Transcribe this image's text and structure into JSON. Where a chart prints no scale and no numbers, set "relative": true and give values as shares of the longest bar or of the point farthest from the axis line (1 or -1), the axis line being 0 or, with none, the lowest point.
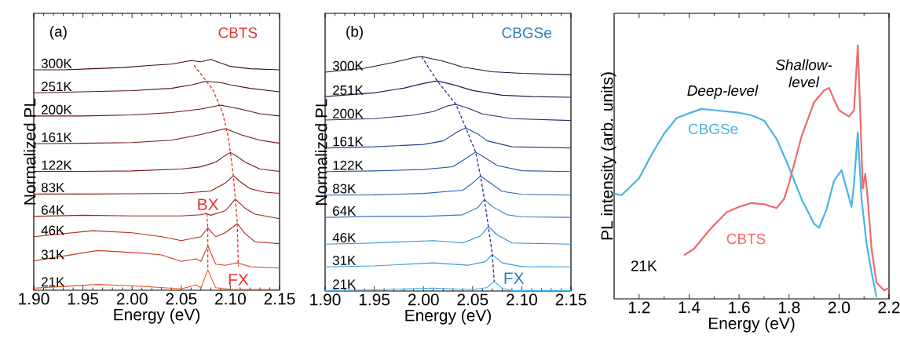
{
  "chart_data": [
    {
      "type": "line",
      "relative": true,
      "xlabel": "Energy (eV)",
      "ylabel": "Normalized PL",
      "line_style": "solid",
      "xlim": [
        1.9,
        2.15
      ],
      "xticks": [
        {
          "value": 1.9,
          "label": "1.90"
        },
        {
          "value": 1.95,
          "label": "1.95"
        },
        {
          "value": 2.0,
          "label": "2.00"
        },
        {
          "value": 2.05,
          "label": "2.05"
        },
        {
          "value": 2.1,
          "label": "2.10"
        },
        {
          "value": 2.15,
          "label": "2.15"
        }
      ],
      "annotations": [
        "(a)",
        "CBTS",
        {
          "text": "BX",
          "x": 2.077,
          "y": 0.332
        },
        {
          "text": "FX",
          "x": 2.108,
          "y": 0.103
        }
      ],
      "series": [
        {
          "name": "300K",
          "color": "#4a0c0c",
          "x": [
            1.9,
            1.93,
            1.96,
            1.99,
            2.02,
            2.04,
            2.06,
            2.07,
            2.08,
            2.09,
            2.1,
            2.12,
            2.15
          ],
          "values": [
            0.955,
            0.955,
            0.96,
            0.965,
            0.975,
            0.98,
            0.995,
            0.99,
            1.0,
            0.985,
            0.97,
            0.96,
            0.955
          ]
        },
        {
          "name": "251K",
          "color": "#5a0f0f",
          "x": [
            1.9,
            1.95,
            2.0,
            2.04,
            2.06,
            2.075,
            2.09,
            2.1,
            2.12,
            2.15
          ],
          "values": [
            0.855,
            0.86,
            0.865,
            0.875,
            0.89,
            0.905,
            0.9,
            0.89,
            0.875,
            0.86
          ]
        },
        {
          "name": "200K",
          "color": "#641212",
          "x": [
            1.9,
            1.95,
            2.0,
            2.04,
            2.07,
            2.09,
            2.11,
            2.13,
            2.15
          ],
          "values": [
            0.755,
            0.755,
            0.76,
            0.77,
            0.785,
            0.802,
            0.785,
            0.765,
            0.755
          ]
        },
        {
          "name": "161K",
          "color": "#6e1414",
          "x": [
            1.9,
            1.95,
            2.0,
            2.04,
            2.07,
            2.085,
            2.095,
            2.11,
            2.13,
            2.15
          ],
          "values": [
            0.635,
            0.637,
            0.64,
            0.65,
            0.675,
            0.69,
            0.7,
            0.675,
            0.65,
            0.637
          ]
        },
        {
          "name": "122K",
          "color": "#7a1616",
          "x": [
            1.9,
            1.95,
            2.0,
            2.05,
            2.07,
            2.085,
            2.095,
            2.1,
            2.105,
            2.115,
            2.13,
            2.15
          ],
          "values": [
            0.515,
            0.515,
            0.517,
            0.525,
            0.535,
            0.555,
            0.585,
            0.597,
            0.585,
            0.555,
            0.525,
            0.515
          ]
        },
        {
          "name": "83K",
          "color": "#8a1a16",
          "x": [
            1.9,
            1.95,
            2.0,
            2.05,
            2.08,
            2.095,
            2.103,
            2.11,
            2.12,
            2.135,
            2.15
          ],
          "values": [
            0.417,
            0.417,
            0.418,
            0.42,
            0.43,
            0.465,
            0.497,
            0.47,
            0.44,
            0.425,
            0.42
          ]
        },
        {
          "name": "64K",
          "color": "#9c2218",
          "x": [
            1.9,
            1.95,
            2.0,
            2.05,
            2.07,
            2.075,
            2.08,
            2.095,
            2.105,
            2.115,
            2.125,
            2.15
          ],
          "values": [
            0.32,
            0.325,
            0.322,
            0.322,
            0.327,
            0.332,
            0.325,
            0.345,
            0.395,
            0.355,
            0.33,
            0.31
          ]
        },
        {
          "name": "46K",
          "color": "#b42c1e",
          "x": [
            1.9,
            1.96,
            2.0,
            2.03,
            2.05,
            2.07,
            2.077,
            2.085,
            2.095,
            2.107,
            2.115,
            2.125,
            2.15
          ],
          "values": [
            0.232,
            0.258,
            0.249,
            0.232,
            0.215,
            0.232,
            0.27,
            0.232,
            0.25,
            0.289,
            0.245,
            0.21,
            0.202
          ]
        },
        {
          "name": "31K",
          "color": "#d03c22",
          "x": [
            1.9,
            1.965,
            2.01,
            2.03,
            2.05,
            2.065,
            2.07,
            2.077,
            2.085,
            2.095,
            2.107,
            2.12,
            2.15
          ],
          "values": [
            0.127,
            0.172,
            0.161,
            0.153,
            0.125,
            0.136,
            0.125,
            0.193,
            0.113,
            0.108,
            0.119,
            0.102,
            0.096
          ]
        },
        {
          "name": "21K",
          "color": "#ea5526",
          "x": [
            1.9,
            1.965,
            2.01,
            2.05,
            2.065,
            2.07,
            2.077,
            2.085,
            2.1,
            2.15
          ],
          "values": [
            0.009,
            0.025,
            0.017,
            0.006,
            0.023,
            0.011,
            0.088,
            0.011,
            0.003,
            0.003
          ]
        },
        {
          "type": "line",
          "color": "#e8322c",
          "line_style": "dashed",
          "x": [
            2.063,
            2.082,
            2.092,
            2.098,
            2.1,
            2.103,
            2.105,
            2.107,
            2.108
          ],
          "values": [
            0.975,
            0.87,
            0.77,
            0.66,
            0.597,
            0.497,
            0.395,
            0.289,
            0.103
          ]
        },
        {
          "type": "line",
          "color": "#e8322c",
          "line_style": "dashed",
          "x": [
            2.076,
            2.077,
            2.077,
            2.077
          ],
          "values": [
            0.332,
            0.27,
            0.193,
            0.088
          ]
        }
      ]
    },
    {
      "type": "line",
      "relative": true,
      "xlabel": "Energy (eV)",
      "ylabel": "Normalized PL",
      "line_style": "solid",
      "xlim": [
        1.9,
        2.15
      ],
      "xticks": [
        {
          "value": 1.9,
          "label": "1.90"
        },
        {
          "value": 1.95,
          "label": "1.95"
        },
        {
          "value": 2.0,
          "label": "2.00"
        },
        {
          "value": 2.05,
          "label": "2.05"
        },
        {
          "value": 2.1,
          "label": "2.10"
        },
        {
          "value": 2.15,
          "label": "2.15"
        }
      ],
      "annotations": [
        "(b)",
        "CBGSe",
        {
          "text": "FX",
          "x": 2.072,
          "y": 0.041
        }
      ],
      "series": [
        {
          "name": "300K",
          "color": "#15153a",
          "x": [
            1.9,
            1.94,
            1.97,
            1.99,
            1.998,
            2.02,
            2.04,
            2.07,
            2.1,
            2.15
          ],
          "values": [
            0.933,
            0.95,
            0.975,
            0.995,
            1.0,
            0.98,
            0.955,
            0.935,
            0.928,
            0.922
          ]
        },
        {
          "name": "251K",
          "color": "#1c1f55",
          "x": [
            1.9,
            1.95,
            1.98,
            2.0,
            2.014,
            2.03,
            2.05,
            2.08,
            2.11,
            2.15
          ],
          "values": [
            0.829,
            0.845,
            0.865,
            0.885,
            0.896,
            0.88,
            0.855,
            0.835,
            0.829,
            0.826
          ]
        },
        {
          "name": "200K",
          "color": "#22307a",
          "x": [
            1.9,
            1.95,
            1.99,
            2.01,
            2.025,
            2.033,
            2.045,
            2.06,
            2.09,
            2.15
          ],
          "values": [
            0.729,
            0.735,
            0.75,
            0.765,
            0.79,
            0.796,
            0.78,
            0.755,
            0.735,
            0.727
          ]
        },
        {
          "name": "161K",
          "color": "#27418f",
          "x": [
            1.9,
            1.95,
            2.0,
            2.02,
            2.035,
            2.043,
            2.055,
            2.065,
            2.09,
            2.15
          ],
          "values": [
            0.61,
            0.615,
            0.625,
            0.64,
            0.68,
            0.696,
            0.67,
            0.64,
            0.615,
            0.61
          ]
        },
        {
          "name": "122K",
          "color": "#2a53a3",
          "x": [
            1.9,
            1.95,
            2.0,
            2.03,
            2.045,
            2.053,
            2.06,
            2.075,
            2.1,
            2.15
          ],
          "values": [
            0.509,
            0.512,
            0.518,
            0.53,
            0.57,
            0.593,
            0.575,
            0.535,
            0.513,
            0.509
          ]
        },
        {
          "name": "83K",
          "color": "#2c64b3",
          "x": [
            1.9,
            1.95,
            2.0,
            2.04,
            2.05,
            2.058,
            2.065,
            2.08,
            2.1,
            2.15
          ],
          "values": [
            0.409,
            0.41,
            0.416,
            0.43,
            0.46,
            0.49,
            0.47,
            0.425,
            0.412,
            0.409
          ]
        },
        {
          "name": "64K",
          "color": "#2f78c2",
          "x": [
            1.9,
            1.95,
            2.0,
            2.04,
            2.055,
            2.062,
            2.07,
            2.085,
            2.1,
            2.15
          ],
          "values": [
            0.314,
            0.318,
            0.318,
            0.325,
            0.355,
            0.39,
            0.36,
            0.325,
            0.316,
            0.314
          ]
        },
        {
          "name": "46K",
          "color": "#3289cf",
          "x": [
            1.9,
            1.95,
            2.01,
            2.04,
            2.058,
            2.066,
            2.075,
            2.09,
            2.15
          ],
          "values": [
            0.2,
            0.205,
            0.215,
            0.205,
            0.235,
            0.275,
            0.24,
            0.205,
            0.2
          ]
        },
        {
          "name": "31K",
          "color": "#3a9ddc",
          "x": [
            1.9,
            1.95,
            2.01,
            2.045,
            2.063,
            2.07,
            2.08,
            2.1,
            2.15
          ],
          "values": [
            0.103,
            0.107,
            0.12,
            0.11,
            0.125,
            0.156,
            0.12,
            0.104,
            0.103
          ]
        },
        {
          "name": "21K",
          "color": "#40b2ea",
          "x": [
            1.9,
            1.95,
            2.01,
            2.05,
            2.065,
            2.072,
            2.08,
            2.09,
            2.15
          ],
          "values": [
            0.002,
            0.005,
            0.012,
            0.006,
            0.015,
            0.041,
            0.012,
            0.002,
            0.002
          ]
        },
        {
          "type": "line",
          "color": "#2d2d8a",
          "line_style": "dashed",
          "x": [
            1.998,
            2.014,
            2.033,
            2.043,
            2.053,
            2.058,
            2.062,
            2.066,
            2.07,
            2.072
          ],
          "values": [
            1.0,
            0.896,
            0.796,
            0.696,
            0.593,
            0.49,
            0.39,
            0.275,
            0.156,
            0.041
          ]
        }
      ]
    },
    {
      "type": "line",
      "relative": true,
      "xlabel": "Energy (eV)",
      "ylabel": "PL intensity (arb. units)",
      "line_style": "solid",
      "xlim": [
        1.1,
        2.2
      ],
      "xticks": [
        1.2,
        1.4,
        1.6,
        1.8,
        {
          "value": 2.0,
          "label": "2.0"
        },
        2.2
      ],
      "annotations": [
        "Deep-level",
        "Shallow-level",
        "21K"
      ],
      "series": [
        {
          "name": "CBGSe",
          "color": "#4ab4e6",
          "x": [
            1.1,
            1.13,
            1.2,
            1.25,
            1.3,
            1.35,
            1.4,
            1.45,
            1.5,
            1.6,
            1.65,
            1.7,
            1.75,
            1.8,
            1.85,
            1.9,
            1.92,
            1.95,
            1.98,
            2.01,
            2.03,
            2.05,
            2.06,
            2.075,
            2.09,
            2.11,
            2.13,
            2.15
          ],
          "values": [
            0.414,
            0.409,
            0.476,
            0.569,
            0.652,
            0.713,
            0.732,
            0.749,
            0.744,
            0.734,
            0.724,
            0.703,
            0.631,
            0.518,
            0.394,
            0.296,
            0.28,
            0.353,
            0.466,
            0.507,
            0.435,
            0.363,
            0.456,
            0.657,
            0.394,
            0.219,
            0.105,
            0.007
          ]
        },
        {
          "name": "CBTS",
          "color": "#f06a6a",
          "x": [
            1.38,
            1.42,
            1.48,
            1.55,
            1.6,
            1.65,
            1.7,
            1.75,
            1.78,
            1.8,
            1.85,
            1.9,
            1.94,
            1.96,
            1.98,
            2.0,
            2.04,
            2.06,
            2.075,
            2.085,
            2.095,
            2.105,
            2.115,
            2.13,
            2.15,
            2.18,
            2.2
          ],
          "values": [
            0.172,
            0.198,
            0.27,
            0.342,
            0.363,
            0.378,
            0.373,
            0.358,
            0.394,
            0.456,
            0.641,
            0.775,
            0.822,
            0.832,
            0.786,
            0.744,
            0.719,
            0.744,
            1.0,
            0.734,
            0.435,
            0.492,
            0.394,
            0.198,
            0.064,
            0.033,
            0.043
          ]
        }
      ]
    }
  ]
}
